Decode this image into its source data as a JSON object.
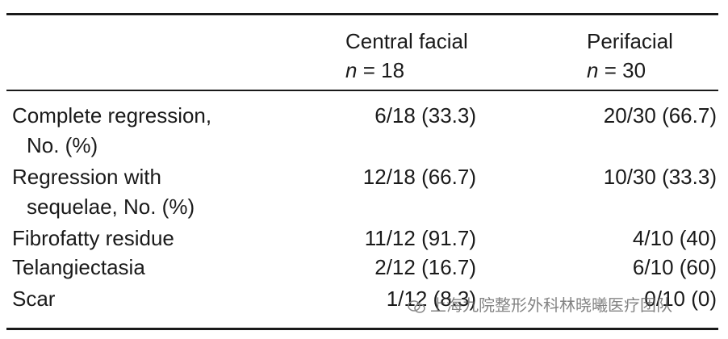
{
  "table": {
    "columns": [
      {
        "label": "Central facial",
        "n_symbol": "n",
        "n_value": "= 18"
      },
      {
        "label": "Perifacial",
        "n_symbol": "n",
        "n_value": "= 30"
      }
    ],
    "rows": [
      {
        "label": [
          "Complete regression,",
          "No. (%)"
        ],
        "cells": [
          "6/18 (33.3)",
          "20/30 (66.7)"
        ]
      },
      {
        "label": [
          "Regression with",
          "sequelae, No. (%)"
        ],
        "cells": [
          "12/18 (66.7)",
          "10/30 (33.3)"
        ]
      },
      {
        "label": [
          "Fibrofatty residue"
        ],
        "cells": [
          "11/12 (91.7)",
          "4/10 (40)"
        ]
      },
      {
        "label": [
          "Telangiectasia"
        ],
        "cells": [
          "2/12 (16.7)",
          "6/10 (60)"
        ]
      },
      {
        "label": [
          "Scar"
        ],
        "cells": [
          "1/12 (8.3)",
          "0/10 (0)"
        ]
      }
    ]
  },
  "watermark": "上海九院整形外科林晓曦医疗团队"
}
